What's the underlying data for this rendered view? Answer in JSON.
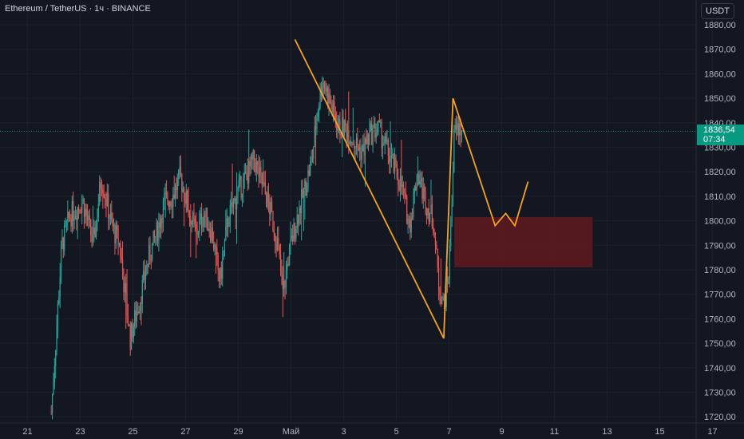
{
  "header": {
    "symbol_title": "Ethereum / TetherUS · 1ч · BINANCE",
    "currency_button": "USDT"
  },
  "last_price": {
    "value": 1836.54,
    "label": "1836,54",
    "countdown": "07:34",
    "color": "#089981"
  },
  "colors": {
    "background": "#131722",
    "up_candle": "#26a69a",
    "down_candle": "#ef5350",
    "pattern_line": "#f7a21b",
    "zone_fill": "#5b1a1e",
    "axis_text": "#b2b5be"
  },
  "chart_data": {
    "type": "candlestick",
    "y_range": [
      1717,
      1884
    ],
    "y_ticks": [
      {
        "value": 1880,
        "label": "1880,00"
      },
      {
        "value": 1870,
        "label": "1870,00"
      },
      {
        "value": 1860,
        "label": "1860,00"
      },
      {
        "value": 1850,
        "label": "1850,00"
      },
      {
        "value": 1840,
        "label": "1840,00"
      },
      {
        "value": 1830,
        "label": "1830,00"
      },
      {
        "value": 1820,
        "label": "1820,00"
      },
      {
        "value": 1810,
        "label": "1810,00"
      },
      {
        "value": 1800,
        "label": "1800,00"
      },
      {
        "value": 1790,
        "label": "1790,00"
      },
      {
        "value": 1780,
        "label": "1780,00"
      },
      {
        "value": 1770,
        "label": "1770,00"
      },
      {
        "value": 1760,
        "label": "1760,00"
      },
      {
        "value": 1750,
        "label": "1750,00"
      },
      {
        "value": 1740,
        "label": "1740,00"
      },
      {
        "value": 1730,
        "label": "1730,00"
      },
      {
        "value": 1720,
        "label": "1720,00"
      }
    ],
    "x_range": [
      20,
      18.3
    ],
    "x_ticks": [
      {
        "day": 21,
        "label": "21"
      },
      {
        "day": 23,
        "label": "23"
      },
      {
        "day": 25,
        "label": "25"
      },
      {
        "day": 27,
        "label": "27"
      },
      {
        "day": 29,
        "label": "29"
      },
      {
        "day": 31,
        "label": "Май"
      },
      {
        "day": 33,
        "label": "3"
      },
      {
        "day": 35,
        "label": "5"
      },
      {
        "day": 37,
        "label": "7"
      },
      {
        "day": 39,
        "label": "9"
      },
      {
        "day": 41,
        "label": "11"
      },
      {
        "day": 43,
        "label": "13"
      },
      {
        "day": 45,
        "label": "15"
      },
      {
        "day": 47,
        "label": "17"
      }
    ],
    "anchors": [
      [
        21.9,
        1722
      ],
      [
        22.3,
        1790
      ],
      [
        22.6,
        1802
      ],
      [
        23.1,
        1808
      ],
      [
        23.5,
        1790
      ],
      [
        23.8,
        1818
      ],
      [
        24.2,
        1798
      ],
      [
        24.5,
        1790
      ],
      [
        24.7,
        1770
      ],
      [
        24.9,
        1752
      ],
      [
        25.3,
        1770
      ],
      [
        25.6,
        1785
      ],
      [
        25.9,
        1795
      ],
      [
        26.2,
        1808
      ],
      [
        26.5,
        1810
      ],
      [
        26.8,
        1818
      ],
      [
        27.1,
        1805
      ],
      [
        27.4,
        1795
      ],
      [
        27.7,
        1803
      ],
      [
        28.0,
        1795
      ],
      [
        28.3,
        1775
      ],
      [
        28.6,
        1800
      ],
      [
        29.0,
        1812
      ],
      [
        29.3,
        1818
      ],
      [
        29.6,
        1825
      ],
      [
        29.9,
        1815
      ],
      [
        30.2,
        1805
      ],
      [
        30.5,
        1790
      ],
      [
        30.7,
        1770
      ],
      [
        30.9,
        1785
      ],
      [
        31.2,
        1800
      ],
      [
        31.5,
        1812
      ],
      [
        31.8,
        1825
      ],
      [
        32.0,
        1845
      ],
      [
        32.2,
        1858
      ],
      [
        32.5,
        1848
      ],
      [
        32.8,
        1838
      ],
      [
        33.1,
        1838
      ],
      [
        33.4,
        1832
      ],
      [
        33.7,
        1828
      ],
      [
        34.0,
        1835
      ],
      [
        34.3,
        1838
      ],
      [
        34.6,
        1830
      ],
      [
        34.9,
        1822
      ],
      [
        35.2,
        1814
      ],
      [
        35.5,
        1798
      ],
      [
        35.8,
        1820
      ],
      [
        36.1,
        1808
      ],
      [
        36.4,
        1800
      ],
      [
        36.6,
        1775
      ],
      [
        36.8,
        1765
      ],
      [
        37.0,
        1780
      ],
      [
        37.2,
        1836
      ],
      [
        37.4,
        1838
      ],
      [
        37.5,
        1836.54
      ]
    ],
    "pattern_line": [
      [
        31.15,
        1874
      ],
      [
        36.8,
        1752
      ],
      [
        37.15,
        1850
      ],
      [
        38.75,
        1798
      ],
      [
        39.15,
        1803
      ],
      [
        39.5,
        1798
      ],
      [
        40.0,
        1816
      ]
    ],
    "zone": {
      "day_start": 37.2,
      "day_end": 42.45,
      "price_high": 1801.5,
      "price_low": 1781
    }
  }
}
